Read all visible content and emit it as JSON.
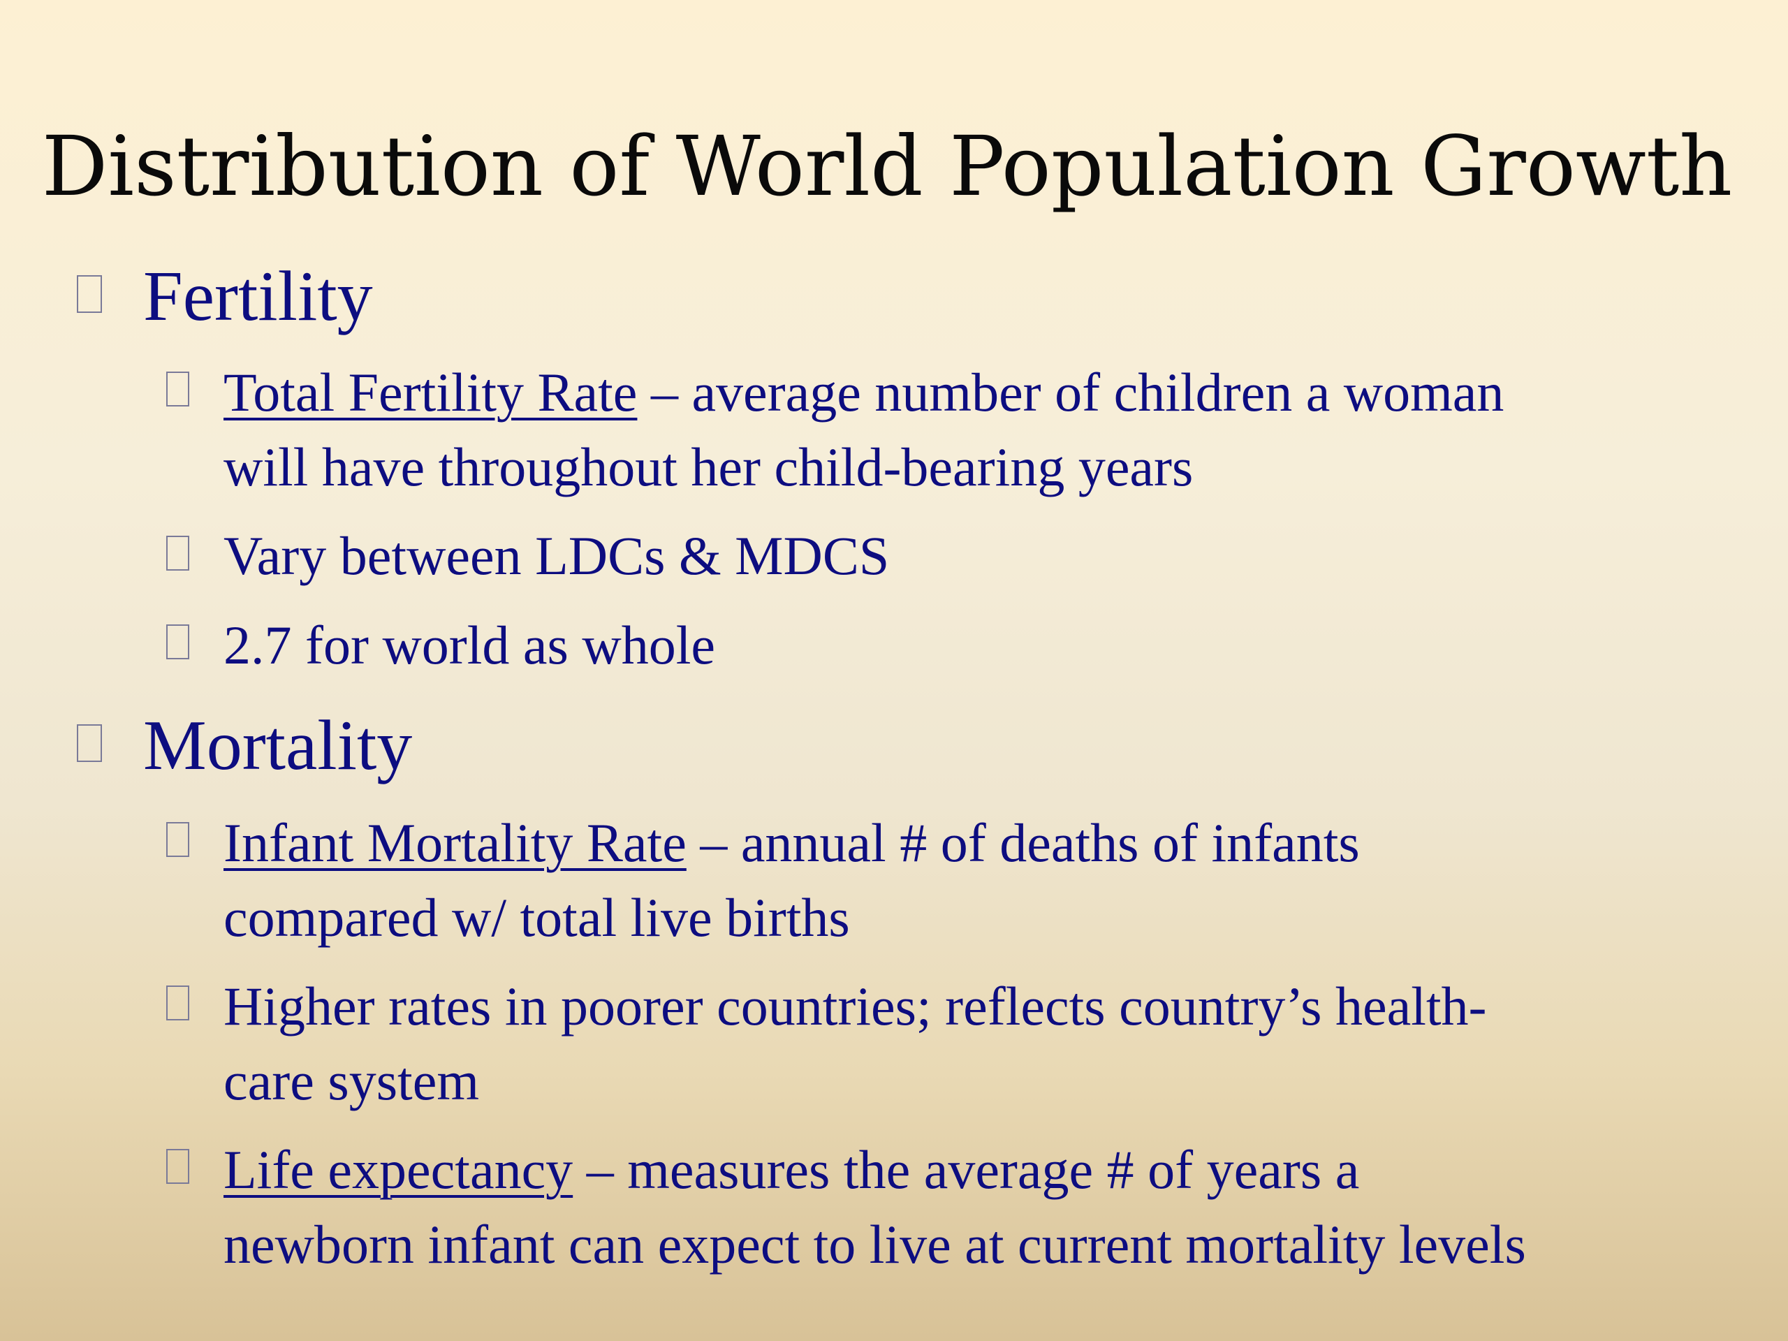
{
  "slide": {
    "title": "Distribution of World Population Growth",
    "bullet_icon": "empty-box-glyph",
    "text_color": "#0d0d80",
    "title_color": "#0a0a0a"
  },
  "fertility": {
    "heading": "Fertility",
    "tfr_term": "Total Fertility Rate",
    "tfr_def_line1": " – average number of children a woman",
    "tfr_def_line2": "will have throughout her child-bearing years",
    "vary": "Vary between LDCs & MDCS",
    "world": "2.7 for world as whole"
  },
  "mortality": {
    "heading": "Mortality",
    "imr_term": "Infant Mortality Rate",
    "imr_def_line1": " – annual # of deaths of infants",
    "imr_def_line2": "compared w/ total live births",
    "higher_line1": "Higher rates in poorer countries; reflects country’s health-",
    "higher_line2": "care system",
    "le_term": "Life expectancy",
    "le_def_line1": " – measures the average # of years a",
    "le_def_line2": "newborn infant can expect to live at current mortality levels"
  }
}
